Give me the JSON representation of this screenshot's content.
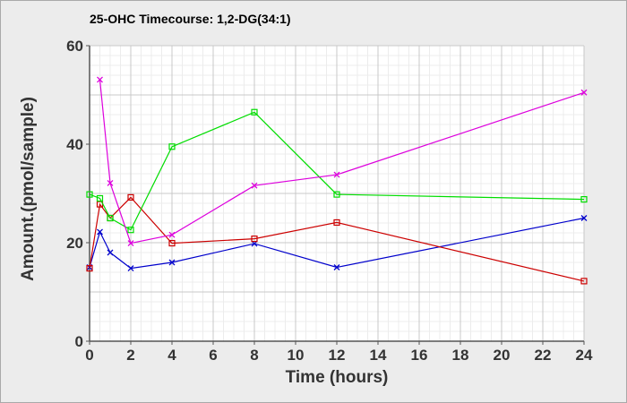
{
  "chart_data": {
    "type": "line",
    "title": "25-OHC Timecourse: 1,2-DG(34:1)",
    "xlabel": "Time (hours)",
    "ylabel": "Amount.(pmol/sample)",
    "xlim": [
      0,
      24
    ],
    "ylim": [
      0,
      60
    ],
    "xticks": [
      0,
      2,
      4,
      6,
      8,
      10,
      12,
      14,
      16,
      18,
      20,
      22,
      24
    ],
    "yticks": [
      0,
      20,
      40,
      60
    ],
    "grid": true,
    "legend": "none",
    "series": [
      {
        "color": "#0000cc",
        "marker": "x",
        "x": [
          0,
          0.5,
          1,
          2,
          4,
          8,
          12,
          24
        ],
        "y": [
          15.0,
          22.2,
          18.0,
          14.8,
          16.0,
          19.8,
          15.0,
          25.0
        ]
      },
      {
        "color": "#cc0000",
        "marker": "square",
        "x": [
          0,
          0.5,
          1,
          2,
          4,
          8,
          12,
          24
        ],
        "y": [
          14.8,
          27.8,
          25.0,
          29.2,
          19.9,
          20.8,
          24.1,
          12.2
        ]
      },
      {
        "color": "#00dd00",
        "marker": "square",
        "x": [
          0,
          0.5,
          1,
          2,
          4,
          8,
          12,
          24
        ],
        "y": [
          29.8,
          29.0,
          25.0,
          22.6,
          39.5,
          46.5,
          29.8,
          28.8
        ]
      },
      {
        "color": "#dd00dd",
        "marker": "x",
        "x": [
          0.5,
          1,
          2,
          4,
          8,
          12,
          24
        ],
        "y": [
          53.1,
          32.1,
          19.9,
          21.6,
          31.6,
          33.8,
          50.5
        ]
      }
    ]
  }
}
